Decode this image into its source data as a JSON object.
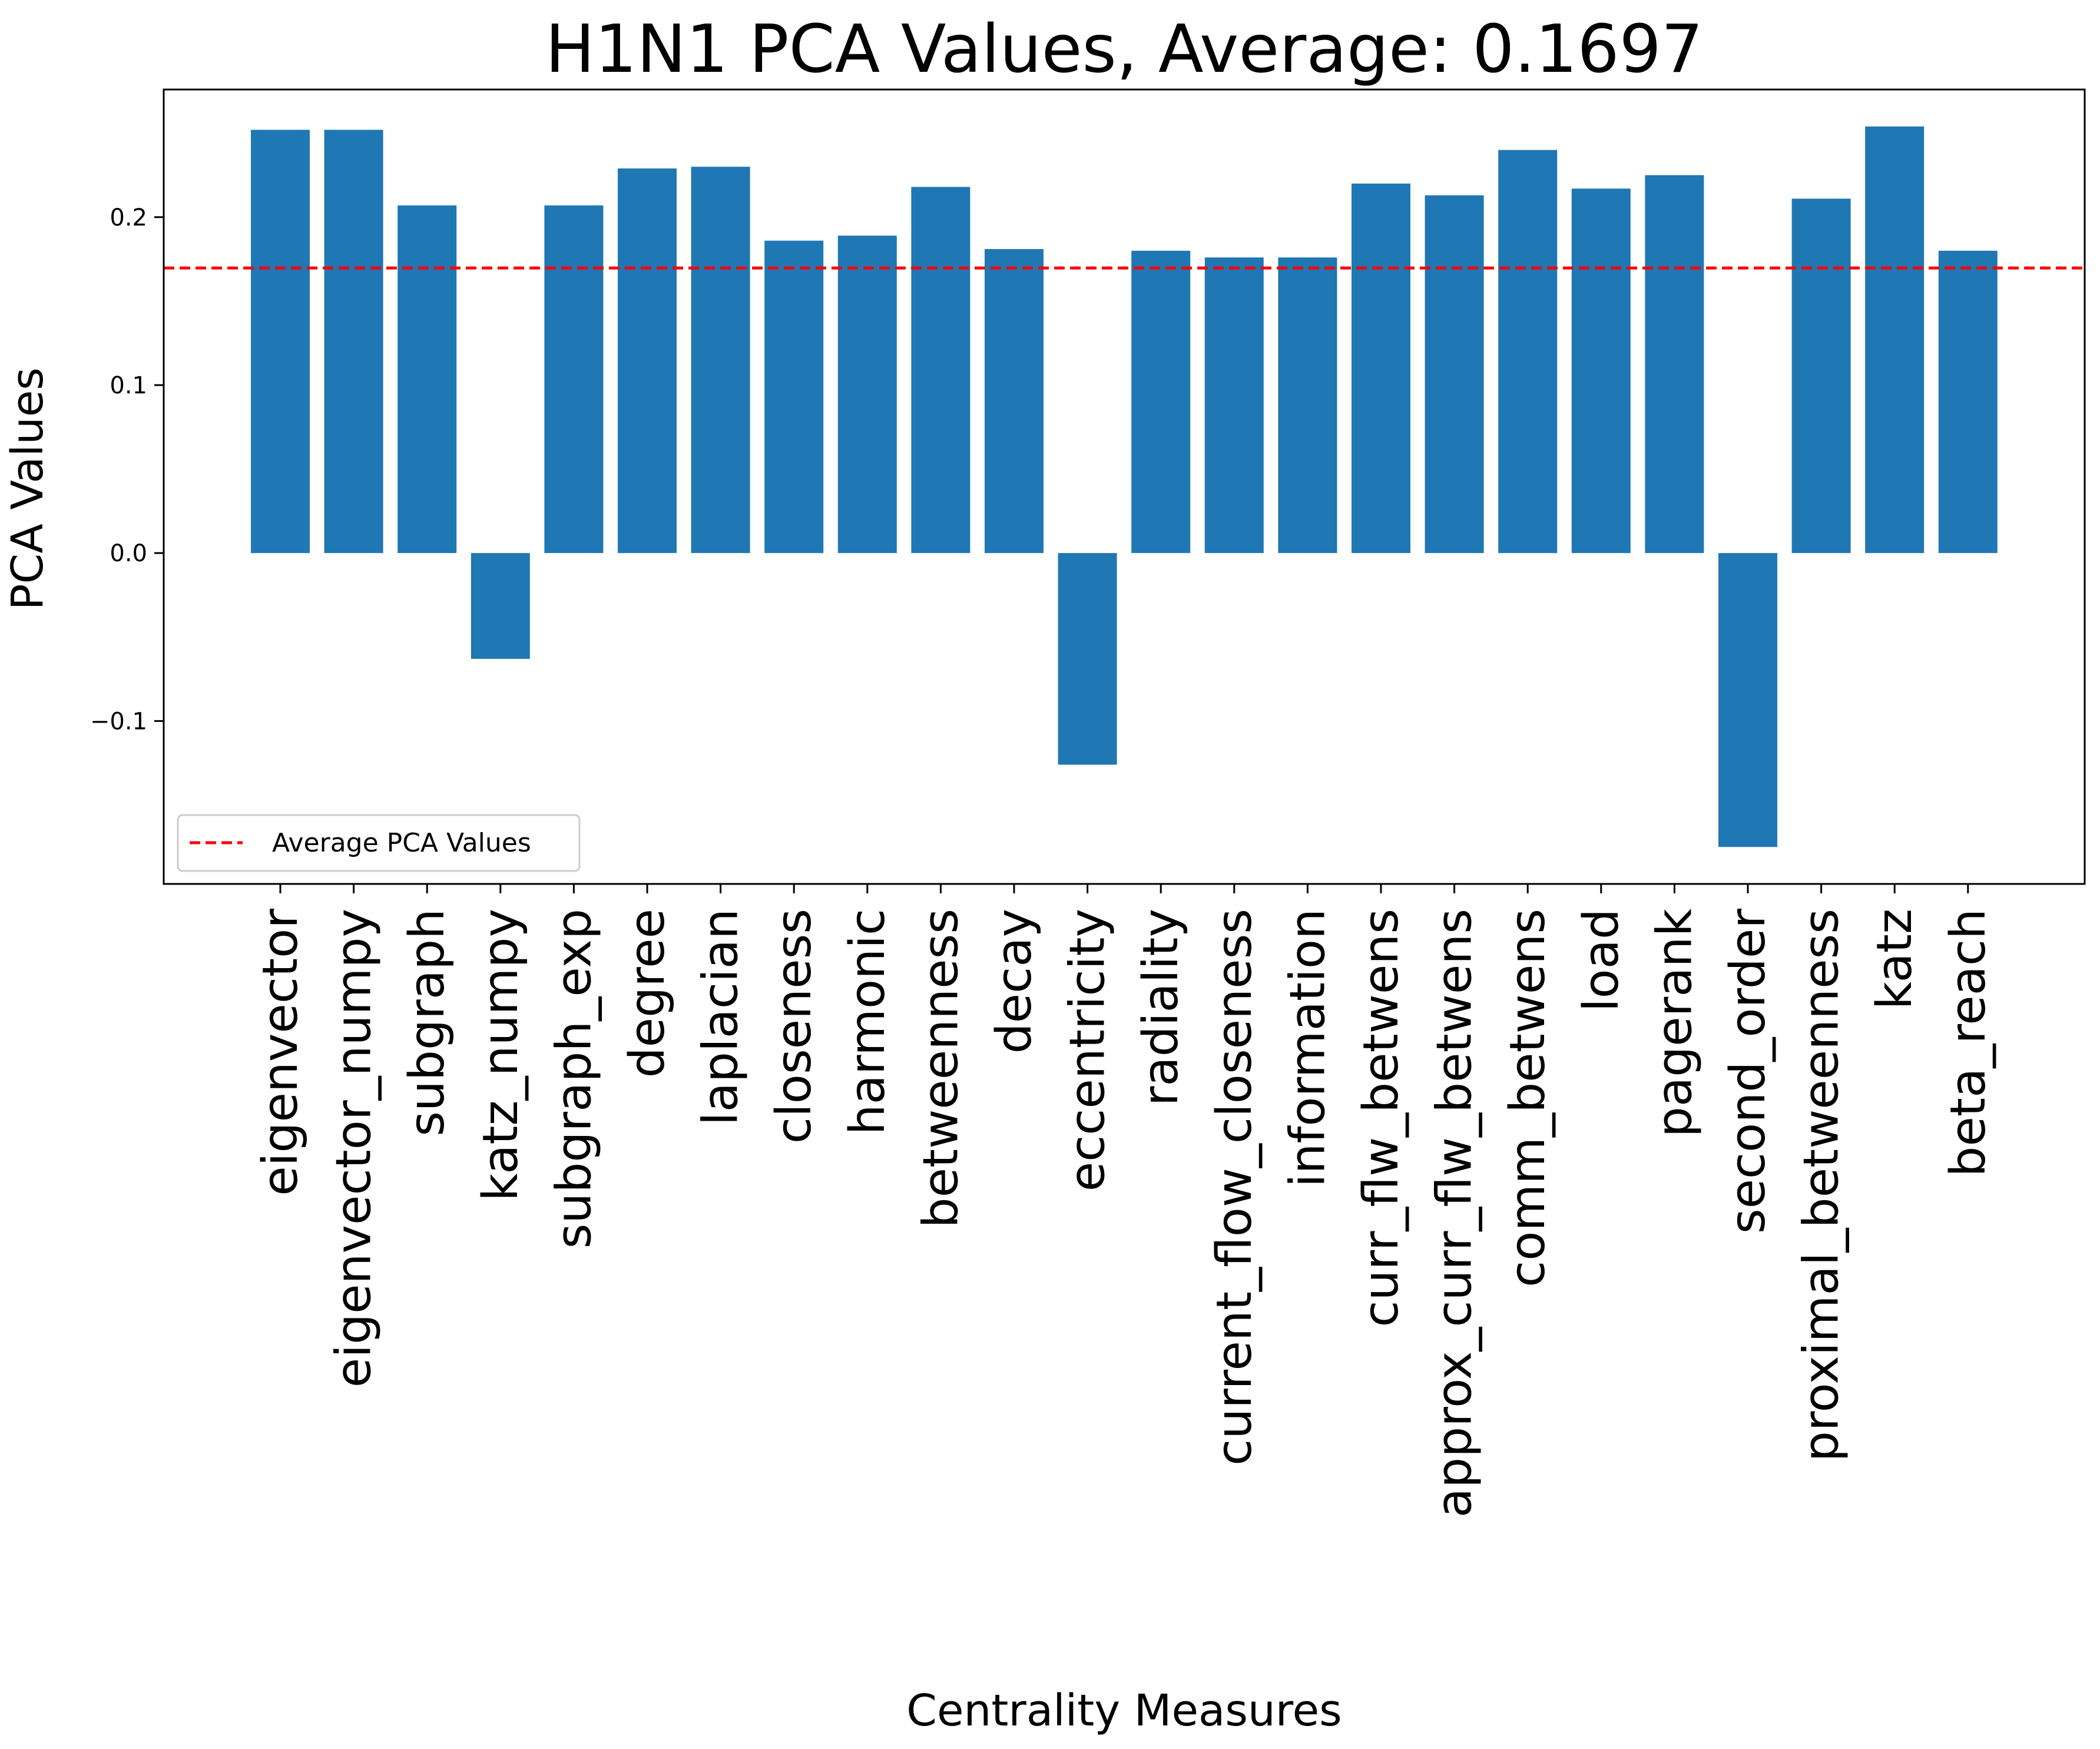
{
  "chart_data": {
    "type": "bar",
    "title": "H1N1 PCA Values, Average: 0.1697",
    "xlabel": "Centrality Measures",
    "ylabel": "PCA Values",
    "categories": [
      "eigenvector",
      "eigenvector_numpy",
      "subgraph",
      "katz_numpy",
      "subgraph_exp",
      "degree",
      "laplacian",
      "closeness",
      "harmonic",
      "betweenness",
      "decay",
      "eccentricity",
      "radiality",
      "current_flow_closeness",
      "information",
      "curr_flw_betwens",
      "approx_curr_flw_betwens",
      "comm_betwens",
      "load",
      "pagerank",
      "second_order",
      "proximal_betweenness",
      "katz",
      "beta_reach"
    ],
    "values": [
      0.252,
      0.252,
      0.207,
      -0.063,
      0.207,
      0.229,
      0.23,
      0.186,
      0.189,
      0.218,
      0.181,
      -0.126,
      0.18,
      0.176,
      0.176,
      0.22,
      0.213,
      0.24,
      0.217,
      0.225,
      -0.175,
      0.211,
      0.254,
      0.18
    ],
    "average": 0.1697,
    "ylim": [
      -0.197,
      0.276
    ],
    "yticks": [
      -0.1,
      0.0,
      0.1,
      0.2
    ],
    "ytick_labels": [
      "−0.1",
      "0.0",
      "0.1",
      "0.2"
    ],
    "legend": {
      "label": "Average PCA Values",
      "placement": "lower-left"
    },
    "colors": {
      "bar": "#1f77b4",
      "average_line": "#ff0000"
    },
    "grid": false
  }
}
